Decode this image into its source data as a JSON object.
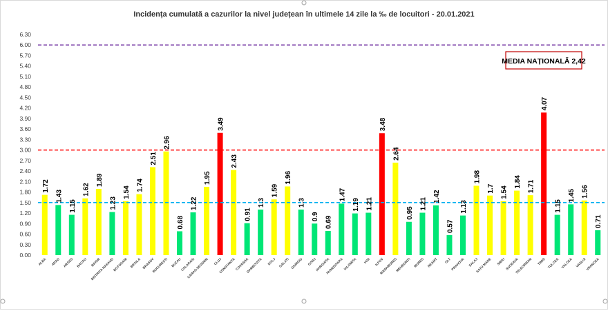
{
  "chart_data": {
    "type": "bar",
    "title": "Incidența cumulată a cazurilor la nivel județean în ultimele 14 zile la ‰ de locuitori - 20.01.2021",
    "xlabel": "",
    "ylabel": "",
    "ylim": [
      0,
      6.3
    ],
    "yticks": [
      "0.00",
      "0.30",
      "0.60",
      "0.90",
      "1.20",
      "1.50",
      "1.80",
      "2.10",
      "2.40",
      "2.70",
      "3.00",
      "3.30",
      "3.60",
      "3.90",
      "4.20",
      "4.50",
      "4.80",
      "5.10",
      "5.40",
      "5.70",
      "6.00",
      "6.30"
    ],
    "grid": false,
    "categories": [
      "ALBA",
      "ARAD",
      "ARGES",
      "BACAU",
      "BIHOR",
      "BISTRITA NASAUD",
      "BOTOSANI",
      "BRAILA",
      "BRASOV",
      "BUCURESTI",
      "BUZAU",
      "CALARASI",
      "CARAS-SEVERIN",
      "CLUJ",
      "CONSTANTA",
      "COVASNA",
      "DAMBOVITA",
      "DOLJ",
      "GALATI",
      "GIURGIU",
      "GORJ",
      "HARGHITA",
      "HUNEDOARA",
      "IALOMITA",
      "IASI",
      "ILFOV",
      "MARAMURES",
      "MEHEDINTI",
      "MURES",
      "NEAMT",
      "OLT",
      "PRAHOVA",
      "SALAJ",
      "SATU MARE",
      "SIBIU",
      "SUCEAVA",
      "TELEORMAN",
      "TIMIS",
      "TULCEA",
      "VALCEA",
      "VASLUI",
      "VRANCEA"
    ],
    "values": [
      1.72,
      1.43,
      1.15,
      1.62,
      1.89,
      1.23,
      1.54,
      1.74,
      2.51,
      2.96,
      0.68,
      1.22,
      1.95,
      3.49,
      2.43,
      0.91,
      1.3,
      1.59,
      1.96,
      1.3,
      0.9,
      0.69,
      1.47,
      1.19,
      1.21,
      3.48,
      2.64,
      0.95,
      1.21,
      1.42,
      0.57,
      1.13,
      1.98,
      1.7,
      1.54,
      1.84,
      1.71,
      4.07,
      1.15,
      1.45,
      1.56,
      0.71
    ],
    "value_labels": [
      "1.72",
      "1.43",
      "1.15",
      "1.62",
      "1.89",
      "1.23",
      "1.54",
      "1.74",
      "2.51",
      "2.96",
      "0.68",
      "1.22",
      "1.95",
      "3.49",
      "2.43",
      "0.91",
      "1.3",
      "1.59",
      "1.96",
      "1.3",
      "0.9",
      "0.69",
      "1.47",
      "1.19",
      "1.21",
      "3.48",
      "2.64",
      "0.95",
      "1.21",
      "1.42",
      "0.57",
      "1.13",
      "1.98",
      "1.7",
      "1.54",
      "1.84",
      "1.71",
      "4.07",
      "1.15",
      "1.45",
      "1.56",
      "0.71"
    ],
    "reference_lines": [
      {
        "value": 6.0,
        "color": "#7030a0"
      },
      {
        "value": 3.0,
        "color": "#ff0000"
      },
      {
        "value": 1.5,
        "color": "#00b0f0"
      }
    ],
    "thresholds": {
      "low": 1.5,
      "high": 3.0
    },
    "colors": {
      "low": "#00e676",
      "mid": "#ffff00",
      "high": "#ff0000"
    },
    "annotation": "MEDIA NAȚIONALĂ 2,42"
  }
}
